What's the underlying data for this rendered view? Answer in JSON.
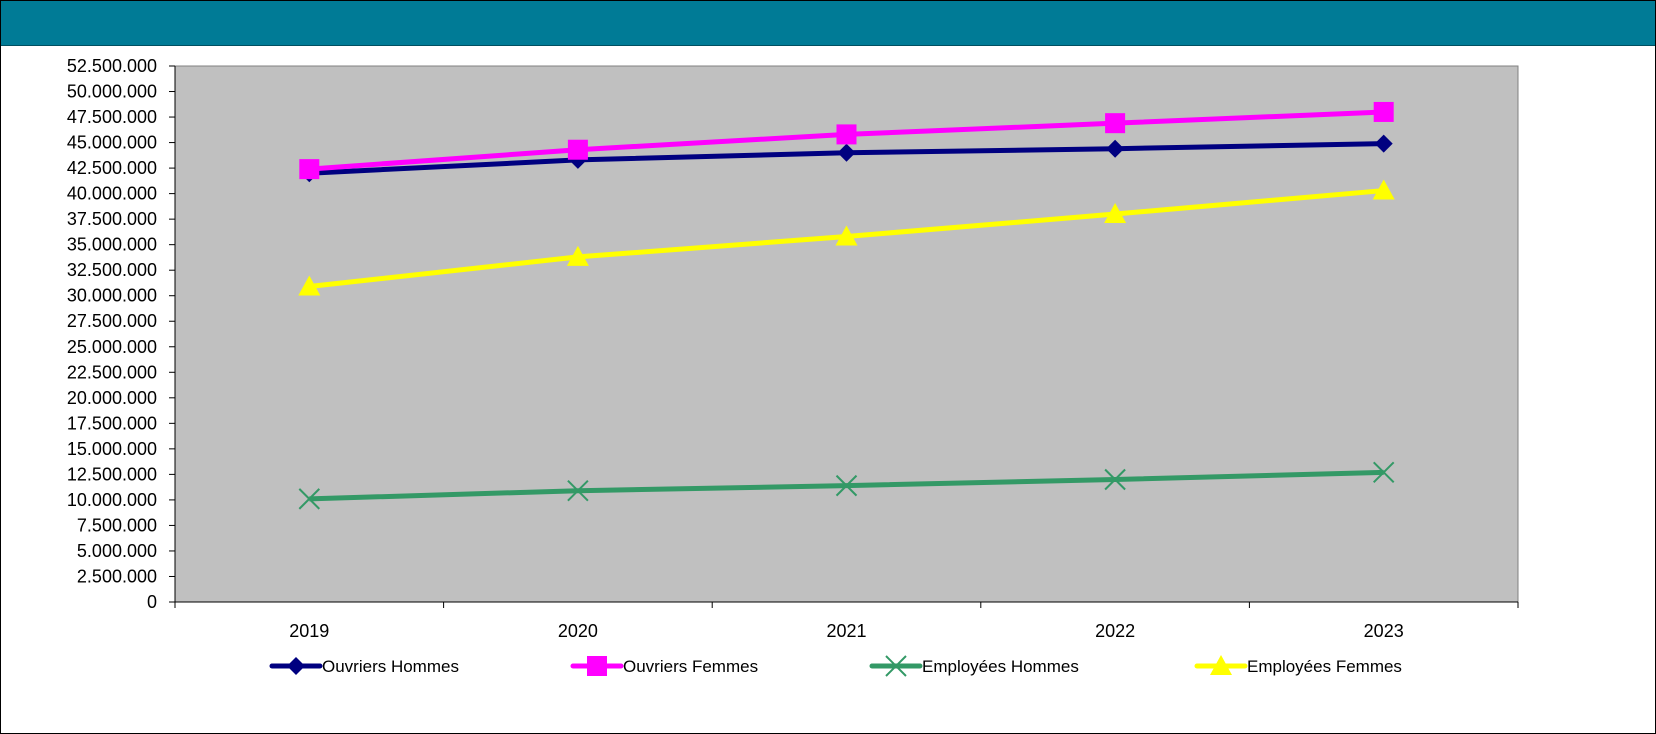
{
  "chart_title": "",
  "chart_data": {
    "type": "line",
    "title": "",
    "xlabel": "",
    "ylabel": "",
    "categories": [
      "2019",
      "2020",
      "2021",
      "2022",
      "2023"
    ],
    "ylim": [
      0,
      52500000
    ],
    "y_tick_step": 2500000,
    "y_tick_labels": [
      "0",
      "2.500.000",
      "5.000.000",
      "7.500.000",
      "10.000.000",
      "12.500.000",
      "15.000.000",
      "17.500.000",
      "20.000.000",
      "22.500.000",
      "25.000.000",
      "27.500.000",
      "30.000.000",
      "32.500.000",
      "35.000.000",
      "37.500.000",
      "40.000.000",
      "42.500.000",
      "45.000.000",
      "47.500.000",
      "50.000.000",
      "52.500.000"
    ],
    "grid": false,
    "plot_background": "#c0c0c0",
    "legend_position": "bottom",
    "series": [
      {
        "name": "Ouvriers Hommes",
        "color": "#000080",
        "marker": "diamond",
        "values": [
          42000000,
          43300000,
          44000000,
          44400000,
          44900000
        ]
      },
      {
        "name": "Ouvriers Femmes",
        "color": "#ff00ff",
        "marker": "square",
        "values": [
          42400000,
          44300000,
          45800000,
          46900000,
          48000000
        ]
      },
      {
        "name": "Employées Hommes",
        "color": "#339966",
        "marker": "x",
        "values": [
          10100000,
          10900000,
          11400000,
          12000000,
          12700000
        ]
      },
      {
        "name": "Employées Femmes",
        "color": "#ffff00",
        "marker": "triangle",
        "values": [
          30900000,
          33800000,
          35800000,
          38000000,
          40300000
        ]
      }
    ]
  }
}
